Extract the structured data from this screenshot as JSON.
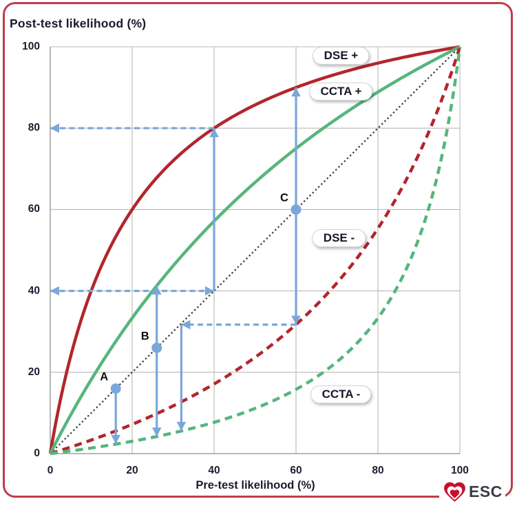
{
  "figure": {
    "frame_color": "#c13b4b",
    "background": "#ffffff"
  },
  "chart_data": {
    "type": "line",
    "title": "Post-test likelihood (%)",
    "xlabel": "Pre-test likelihood (%)",
    "ylabel": "Post-test likelihood (%)",
    "xlim": [
      0,
      100
    ],
    "ylim": [
      0,
      100
    ],
    "x_ticks": [
      0,
      20,
      40,
      60,
      80,
      100
    ],
    "y_ticks": [
      0,
      20,
      40,
      60,
      80,
      100
    ],
    "grid": true,
    "grid_color": "#b9b9b9",
    "axis_color": "#8f8f8f",
    "accent_blue": "#7aa7d9",
    "series": [
      {
        "name": "DSE +",
        "line": "solid",
        "color": "#b2262c",
        "likelihood_ratio": 6,
        "points_pct": [
          [
            0,
            0
          ],
          [
            10,
            40
          ],
          [
            20,
            60
          ],
          [
            30,
            72
          ],
          [
            40,
            80
          ],
          [
            50,
            85.7
          ],
          [
            60,
            90
          ],
          [
            70,
            93.3
          ],
          [
            80,
            96
          ],
          [
            90,
            98.2
          ],
          [
            100,
            100
          ]
        ]
      },
      {
        "name": "CCTA +",
        "line": "solid",
        "color": "#57b57e",
        "likelihood_ratio": 2,
        "points_pct": [
          [
            0,
            0
          ],
          [
            10,
            18.2
          ],
          [
            20,
            33.3
          ],
          [
            30,
            46.2
          ],
          [
            40,
            57.1
          ],
          [
            50,
            66.7
          ],
          [
            60,
            75
          ],
          [
            70,
            82.4
          ],
          [
            80,
            88.9
          ],
          [
            90,
            94.7
          ],
          [
            100,
            100
          ]
        ]
      },
      {
        "name": "DSE -",
        "line": "dashed",
        "color": "#b2262c",
        "likelihood_ratio": 0.31,
        "points_pct": [
          [
            0,
            0
          ],
          [
            10,
            3.3
          ],
          [
            20,
            7.2
          ],
          [
            30,
            11.7
          ],
          [
            40,
            17.1
          ],
          [
            50,
            23.7
          ],
          [
            60,
            31.7
          ],
          [
            70,
            42
          ],
          [
            80,
            55.4
          ],
          [
            90,
            73.6
          ],
          [
            100,
            100
          ]
        ]
      },
      {
        "name": "CCTA -",
        "line": "dashed",
        "color": "#57b57e",
        "likelihood_ratio": 0.125,
        "points_pct": [
          [
            0,
            0
          ],
          [
            10,
            1.4
          ],
          [
            20,
            3
          ],
          [
            30,
            5.1
          ],
          [
            40,
            7.7
          ],
          [
            50,
            11.1
          ],
          [
            60,
            15.8
          ],
          [
            70,
            22.6
          ],
          [
            80,
            33.3
          ],
          [
            90,
            52.9
          ],
          [
            100,
            100
          ]
        ]
      }
    ],
    "reference_line": {
      "name": "identity",
      "line": "dotted",
      "color": "#3d3d3d",
      "from": [
        0,
        0
      ],
      "to": [
        100,
        100
      ]
    },
    "curve_labels": [
      {
        "text": "DSE +",
        "x": 71,
        "y": 97.8
      },
      {
        "text": "CCTA +",
        "x": 71,
        "y": 89.0
      },
      {
        "text": "DSE -",
        "x": 70.5,
        "y": 53.0
      },
      {
        "text": "CCTA -",
        "x": 71,
        "y": 14.5
      }
    ],
    "points": [
      {
        "label": "A",
        "x": 16,
        "y": 16
      },
      {
        "label": "B",
        "x": 26,
        "y": 26
      },
      {
        "label": "C",
        "x": 60,
        "y": 60
      }
    ],
    "arrows": [
      {
        "x1": 0,
        "y1": 40,
        "x2": 40,
        "y2": 40,
        "dashed": true,
        "head_start": true,
        "head_end": true
      },
      {
        "x1": 40,
        "y1": 40,
        "x2": 40,
        "y2": 80,
        "dashed": false,
        "head_start": false,
        "head_end": true
      },
      {
        "x1": 40,
        "y1": 80,
        "x2": 0,
        "y2": 80,
        "dashed": true,
        "head_start": false,
        "head_end": true
      },
      {
        "x1": 60,
        "y1": 90,
        "x2": 60,
        "y2": 31.7,
        "dashed": false,
        "head_start": true,
        "head_end": true
      },
      {
        "x1": 60,
        "y1": 31.7,
        "x2": 32,
        "y2": 31.7,
        "dashed": true,
        "head_start": false,
        "head_end": true
      },
      {
        "x1": 32,
        "y1": 31.7,
        "x2": 32,
        "y2": 5.6,
        "dashed": false,
        "head_start": false,
        "head_end": true
      },
      {
        "x1": 26,
        "y1": 41.3,
        "x2": 26,
        "y2": 4.2,
        "dashed": false,
        "head_start": true,
        "head_end": true
      },
      {
        "x1": 16,
        "y1": 16,
        "x2": 16,
        "y2": 2.4,
        "dashed": false,
        "head_start": false,
        "head_end": true
      }
    ]
  },
  "footer": {
    "logo_text": "ESC",
    "logo_heart_color": "#c8102e"
  }
}
